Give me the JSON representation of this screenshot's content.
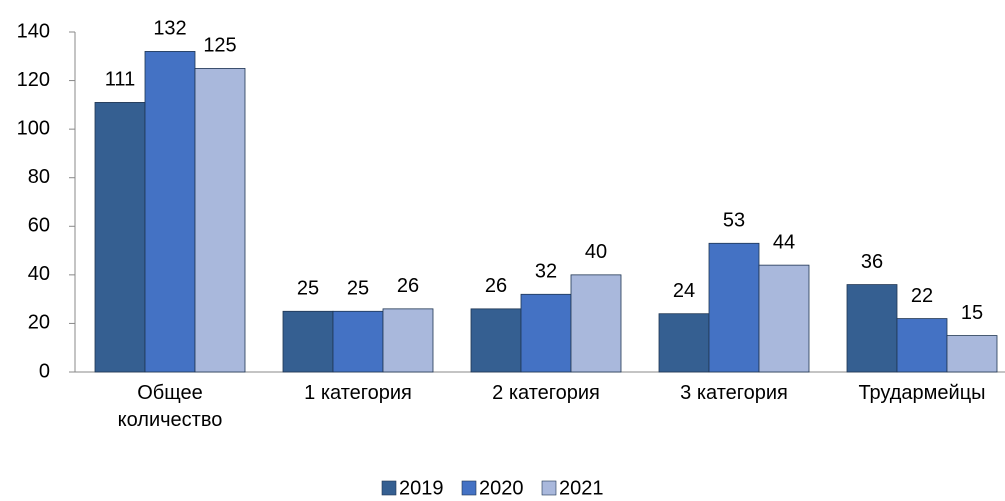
{
  "chart_data": {
    "type": "bar",
    "categories": [
      "Общее количество",
      "1 категория",
      "2 категория",
      "3 категория",
      "Трудармейцы"
    ],
    "series": [
      {
        "name": "2019",
        "color": "#355f91",
        "values": [
          111,
          25,
          26,
          24,
          36
        ]
      },
      {
        "name": "2020",
        "color": "#4472c4",
        "values": [
          132,
          25,
          32,
          53,
          22
        ]
      },
      {
        "name": "2021",
        "color": "#a9b8dc",
        "values": [
          125,
          26,
          40,
          44,
          15
        ]
      }
    ],
    "ylim": [
      0,
      140
    ],
    "yticks": [
      0,
      20,
      40,
      60,
      80,
      100,
      120,
      140
    ],
    "legend": "bottom"
  }
}
